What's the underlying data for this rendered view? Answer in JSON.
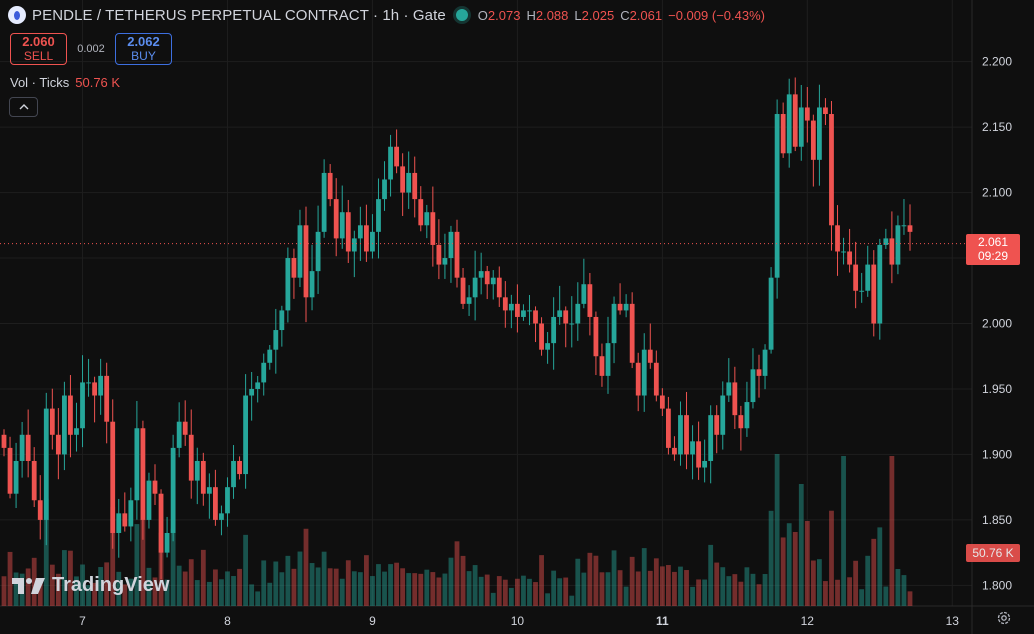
{
  "header": {
    "symbol_title": "PENDLE / TETHERUS PERPETUAL CONTRACT · 1h · Gate",
    "ohlc": [
      {
        "k": "O",
        "v": "2.073"
      },
      {
        "k": "H",
        "v": "2.088"
      },
      {
        "k": "L",
        "v": "2.025"
      },
      {
        "k": "C",
        "v": "2.061"
      },
      {
        "k": "",
        "v": "−0.009 (−0.43%)"
      }
    ]
  },
  "trade": {
    "sell_price": "2.060",
    "sell_label": "SELL",
    "spread": "0.002",
    "buy_price": "2.062",
    "buy_label": "BUY"
  },
  "volume": {
    "label": "Vol · Ticks",
    "value": "50.76 K"
  },
  "last_price": {
    "price": "2.061",
    "countdown": "09:29"
  },
  "volume_badge": "50.76 K",
  "brand": "TradingView",
  "colors": {
    "up": "#26a69a",
    "down": "#ef5350",
    "grid": "#1e1e1e",
    "bg": "#0f0f0f"
  },
  "icons": {
    "collapse": "chevron-up-icon",
    "settings": "gear-icon"
  },
  "chart_data": {
    "type": "candlestick",
    "y_ticks": [
      "2.200",
      "2.150",
      "2.100",
      "2.050",
      "2.000",
      "1.950",
      "1.900",
      "1.850",
      "1.800"
    ],
    "ylim": [
      1.785,
      2.215
    ],
    "x_ticks": [
      {
        "label": "7",
        "bar": 13
      },
      {
        "label": "8",
        "bar": 37
      },
      {
        "label": "9",
        "bar": 61
      },
      {
        "label": "10",
        "bar": 85
      },
      {
        "label": "11",
        "bar": 109
      },
      {
        "label": "12",
        "bar": 133
      },
      {
        "label": "13",
        "bar": 157
      }
    ],
    "last_price_line": 2.061,
    "closes": [
      1.905,
      1.87,
      1.895,
      1.915,
      1.895,
      1.865,
      1.85,
      1.935,
      1.915,
      1.9,
      1.945,
      1.915,
      1.92,
      1.955,
      1.955,
      1.945,
      1.96,
      1.925,
      1.84,
      1.855,
      1.845,
      1.865,
      1.92,
      1.85,
      1.88,
      1.87,
      1.825,
      1.84,
      1.905,
      1.925,
      1.915,
      1.88,
      1.895,
      1.87,
      1.875,
      1.85,
      1.855,
      1.875,
      1.895,
      1.885,
      1.945,
      1.95,
      1.955,
      1.97,
      1.98,
      1.995,
      2.01,
      2.05,
      2.035,
      2.075,
      2.02,
      2.04,
      2.07,
      2.115,
      2.095,
      2.065,
      2.085,
      2.055,
      2.065,
      2.075,
      2.055,
      2.07,
      2.095,
      2.11,
      2.135,
      2.12,
      2.1,
      2.115,
      2.095,
      2.075,
      2.085,
      2.06,
      2.045,
      2.05,
      2.07,
      2.035,
      2.015,
      2.02,
      2.035,
      2.04,
      2.03,
      2.035,
      2.02,
      2.01,
      2.015,
      2.005,
      2.01,
      2.01,
      2.0,
      1.98,
      1.985,
      2.005,
      2.01,
      2.0,
      2.0,
      2.015,
      2.03,
      2.005,
      1.975,
      1.96,
      1.985,
      2.015,
      2.01,
      2.015,
      1.97,
      1.945,
      1.98,
      1.97,
      1.945,
      1.935,
      1.905,
      1.9,
      1.93,
      1.9,
      1.91,
      1.89,
      1.895,
      1.93,
      1.915,
      1.945,
      1.955,
      1.93,
      1.92,
      1.94,
      1.965,
      1.96,
      1.98,
      2.035,
      2.16,
      2.13,
      2.175,
      2.135,
      2.165,
      2.155,
      2.125,
      2.165,
      2.16,
      2.075,
      2.055,
      2.055,
      2.045,
      2.025,
      2.025,
      2.045,
      2.0,
      2.06,
      2.065,
      2.045,
      2.075,
      2.075,
      2.07
    ]
  }
}
